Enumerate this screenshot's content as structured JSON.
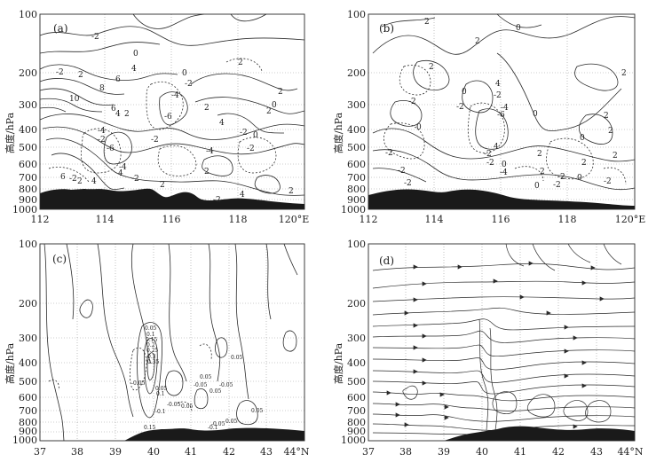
{
  "figure": {
    "panels": [
      {
        "id": "a",
        "label": "(a)",
        "ylabel": "高度/hPa",
        "y_ticks": [
          "100",
          "200",
          "300",
          "400",
          "500",
          "600",
          "700",
          "800",
          "900",
          "1000"
        ],
        "x_ticks": [
          "112",
          "114",
          "116",
          "118",
          "120°E"
        ],
        "contour_labels": [
          "0",
          "-2",
          "2",
          "2",
          "4",
          "-2",
          "6",
          "8",
          "10",
          "-4",
          "-6",
          "-4",
          "-2",
          "6",
          "4",
          "2",
          "0",
          "-2",
          "-4",
          "-6",
          "2",
          "4",
          "2",
          "-2",
          "2",
          "0",
          "-2",
          "-4",
          "-2",
          "4",
          "-2",
          "2",
          "0",
          "2",
          "-2",
          "6",
          "-2",
          "2",
          "4",
          "2",
          "4"
        ]
      },
      {
        "id": "b",
        "label": "(b)",
        "ylabel": "高度/hPa",
        "y_ticks": [
          "100",
          "200",
          "300",
          "400",
          "500",
          "600",
          "700",
          "800",
          "900",
          "1000"
        ],
        "x_ticks": [
          "112",
          "114",
          "116",
          "118",
          "120°E"
        ],
        "contour_labels": [
          "2",
          "0",
          "2",
          "2",
          "-2",
          "2",
          "4",
          "-2",
          "0",
          "-4",
          "-6",
          "4",
          "2",
          "0",
          "-2",
          "2",
          "-2",
          "0",
          "-2",
          "0",
          "2",
          "-2",
          "0",
          "-2",
          "-4",
          "2",
          "-2",
          "2",
          "0",
          "2",
          "-2",
          "-2",
          "0",
          "-2"
        ]
      },
      {
        "id": "c",
        "label": "(c)",
        "ylabel": "高度/hPa",
        "y_ticks": [
          "100",
          "200",
          "300",
          "400",
          "500",
          "600",
          "700",
          "800",
          "900",
          "1000"
        ],
        "x_ticks": [
          "37",
          "38",
          "39",
          "40",
          "41",
          "42",
          "43",
          "44°N"
        ],
        "contour_labels": [
          "0.05",
          "0.1",
          "0.15",
          "0.2",
          "0.25",
          "0.3",
          "0.35",
          "0.05",
          "0.1",
          "0.15",
          "-0.05",
          "-0.1",
          "-0.05",
          "0.05",
          "-0.05",
          "0.05",
          "0.05",
          "-0.05",
          "0.05",
          "-0.05",
          "0.05",
          "0.05",
          "-0.1"
        ]
      },
      {
        "id": "d",
        "label": "(d)",
        "ylabel": "高度/hPa",
        "y_ticks": [
          "100",
          "200",
          "300",
          "400",
          "500",
          "600",
          "700",
          "800",
          "900",
          "1000"
        ],
        "x_ticks": [
          "37",
          "38",
          "39",
          "40",
          "41",
          "42",
          "43",
          "44°N"
        ]
      }
    ]
  },
  "colors": {
    "line": "#2a2a2a",
    "grid": "#9a9a9a",
    "terrain": "#1a1a1a"
  }
}
